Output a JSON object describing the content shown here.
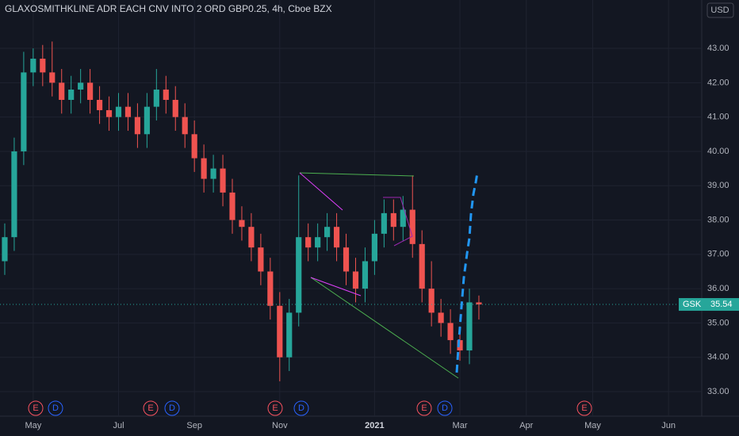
{
  "chart_data": {
    "type": "candlestick",
    "title": "GLAXOSMITHKLINE ADR EACH CNV INTO 2 ORD GBP0.25, 4h, Cboe BZX",
    "currency": "USD",
    "symbol": "GSK",
    "categories": [
      null,
      null,
      null,
      "May",
      null,
      null,
      null,
      null,
      null,
      null,
      null,
      null,
      "Jul",
      null,
      null,
      null,
      null,
      null,
      null,
      null,
      "Sep",
      null,
      null,
      null,
      null,
      null,
      null,
      null,
      null,
      "Nov",
      null,
      null,
      null,
      null,
      null,
      null,
      null,
      null,
      null,
      "2021",
      null,
      null,
      null,
      null,
      null,
      null,
      null,
      null,
      "Mar",
      null,
      null,
      null,
      null,
      null,
      null,
      "Apr",
      null,
      null,
      null,
      null,
      null,
      null,
      "May",
      null,
      null,
      null,
      null,
      null,
      null,
      null,
      "Jun",
      null,
      null,
      null
    ],
    "open": [
      36.8,
      37.5,
      40,
      42.3,
      42.7,
      42.3,
      42,
      41.5,
      41.8,
      42,
      41.5,
      41.2,
      41,
      41.3,
      41,
      40.5,
      41.3,
      41.8,
      41.5,
      41,
      40.5,
      39.8,
      39.2,
      39.5,
      38.8,
      38,
      37.8,
      37.2,
      36.5,
      35.5,
      34,
      35.3,
      37.5,
      37.2,
      37.5,
      37.8,
      37.2,
      36.5,
      36,
      36.8,
      37.6,
      38.2,
      37.8,
      38.3,
      37.3,
      36,
      35.3,
      35,
      34.5,
      34.2,
      35.6,
      null,
      null,
      null,
      null,
      null,
      null,
      null,
      null,
      null,
      null,
      null,
      null,
      null,
      null,
      null,
      null,
      null,
      null,
      null,
      null,
      null,
      null,
      null
    ],
    "high": [
      37.9,
      40.4,
      42.9,
      43.0,
      43.1,
      43.2,
      42.4,
      42.2,
      42.4,
      42.4,
      41.9,
      41.6,
      41.7,
      41.7,
      41.4,
      41.7,
      42.4,
      42.2,
      41.9,
      41.4,
      40.9,
      40.2,
      39.9,
      39.9,
      39.2,
      38.4,
      38.2,
      37.6,
      36.9,
      35.9,
      35.7,
      39.3,
      37.9,
      37.9,
      38.2,
      38.2,
      37.6,
      36.9,
      37.2,
      38.0,
      38.6,
      38.6,
      38.7,
      39.3,
      37.7,
      36.8,
      35.7,
      35.4,
      34.9,
      36.0,
      35.8,
      null,
      null,
      null,
      null,
      null,
      null,
      null,
      null,
      null,
      null,
      null,
      null,
      null,
      null,
      null,
      null,
      null,
      null,
      null,
      null,
      null,
      null,
      null
    ],
    "low": [
      36.4,
      37.1,
      39.6,
      41.9,
      41.9,
      41.6,
      41.1,
      41.1,
      41.4,
      41.1,
      40.8,
      40.6,
      40.6,
      40.6,
      40.1,
      40.1,
      40.9,
      41.1,
      40.6,
      40.1,
      39.4,
      38.8,
      38.8,
      38.4,
      37.6,
      37.4,
      36.8,
      36.1,
      35.1,
      33.3,
      33.6,
      34.9,
      36.8,
      36.8,
      37.1,
      36.8,
      36.1,
      35.6,
      35.6,
      36.4,
      37.2,
      37.4,
      37.4,
      36.9,
      35.6,
      34.9,
      34.6,
      34.1,
      33.9,
      33.8,
      35.1,
      null,
      null,
      null,
      null,
      null,
      null,
      null,
      null,
      null,
      null,
      null,
      null,
      null,
      null,
      null,
      null,
      null,
      null,
      null,
      null,
      null,
      null,
      null
    ],
    "close": [
      37.5,
      40,
      42.3,
      42.7,
      42.3,
      42,
      41.5,
      41.8,
      42,
      41.5,
      41.2,
      41,
      41.3,
      41,
      40.5,
      41.3,
      41.8,
      41.5,
      41,
      40.5,
      39.8,
      39.2,
      39.5,
      38.8,
      38,
      37.8,
      37.2,
      36.5,
      35.5,
      34,
      35.3,
      37.5,
      37.2,
      37.5,
      37.8,
      37.2,
      36.5,
      36,
      36.8,
      37.6,
      38.2,
      37.8,
      38.3,
      37.3,
      36,
      35.3,
      35,
      34.5,
      34.2,
      35.6,
      35.54,
      null,
      null,
      null,
      null,
      null,
      null,
      null,
      null,
      null,
      null,
      null,
      null,
      null,
      null,
      null,
      null,
      null,
      null,
      null,
      null,
      null,
      null,
      null
    ],
    "up_color": "#26a69a",
    "down_color": "#ef5350",
    "ylim": [
      32.4,
      44.41
    ],
    "yticks": [
      {
        "value": 33,
        "label": "33.00"
      },
      {
        "value": 34,
        "label": "34.00"
      },
      {
        "value": 35,
        "label": "35.00"
      },
      {
        "value": 36,
        "label": "36.00"
      },
      {
        "value": 37,
        "label": "37.00"
      },
      {
        "value": 38,
        "label": "38.00"
      },
      {
        "value": 39,
        "label": "39.00"
      },
      {
        "value": 40,
        "label": "40.00"
      },
      {
        "value": 41,
        "label": "41.00"
      },
      {
        "value": 42,
        "label": "42.00"
      },
      {
        "value": 43,
        "label": "43.00"
      }
    ],
    "grid": true,
    "events": [
      "E",
      "D",
      "E",
      "D",
      "E",
      "D",
      "E",
      "D",
      "E"
    ]
  }
}
